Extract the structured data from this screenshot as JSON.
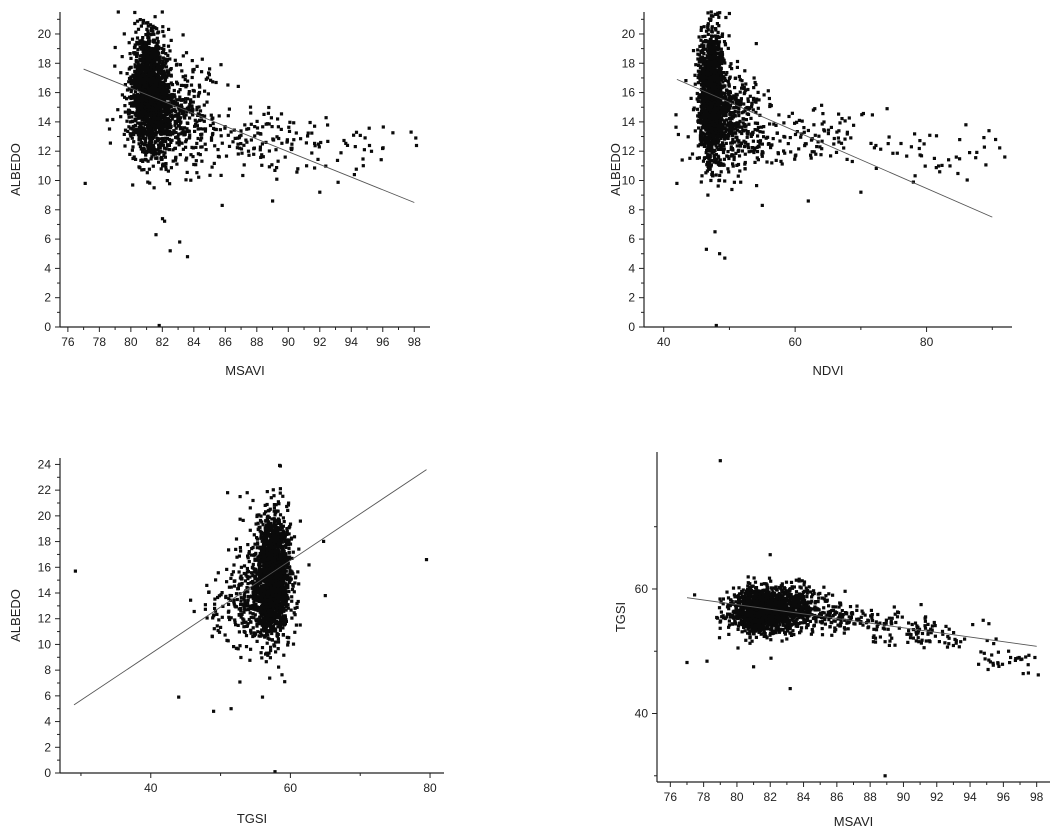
{
  "chart_data": [
    {
      "id": "p1",
      "type": "scatter",
      "xlabel": "MSAVI",
      "ylabel": "ALBEDO",
      "xlim": [
        75.5,
        99
      ],
      "ylim": [
        0,
        21.5
      ],
      "xticks": [
        76,
        78,
        80,
        82,
        84,
        86,
        88,
        90,
        92,
        94,
        96,
        98
      ],
      "yticks": [
        0,
        2,
        4,
        6,
        8,
        10,
        12,
        14,
        16,
        18,
        20
      ],
      "fit_line": [
        [
          77,
          17.6
        ],
        [
          98,
          8.5
        ]
      ],
      "clusters": [
        {
          "cx": 81.2,
          "cy": 16.0,
          "sx": 0.55,
          "sy": 2.1,
          "n": 1500
        },
        {
          "cx": 82.5,
          "cy": 14.6,
          "sx": 1.3,
          "sy": 1.8,
          "n": 550
        },
        {
          "cx": 87.5,
          "cy": 12.9,
          "sx": 2.2,
          "sy": 1.0,
          "n": 120
        },
        {
          "cx": 93.5,
          "cy": 12.0,
          "sx": 2.6,
          "sy": 1.1,
          "n": 50
        }
      ],
      "outliers": [
        [
          77.1,
          9.8
        ],
        [
          79.2,
          21.5
        ],
        [
          82.0,
          21.5
        ],
        [
          81.6,
          6.3
        ],
        [
          83.1,
          5.8
        ],
        [
          82.5,
          5.2
        ],
        [
          83.6,
          4.8
        ],
        [
          85.8,
          8.3
        ],
        [
          89.0,
          8.6
        ],
        [
          92.0,
          9.2
        ],
        [
          81.8,
          0.1
        ],
        [
          94.2,
          10.4
        ],
        [
          98.1,
          12.9
        ],
        [
          97.8,
          13.3
        ]
      ]
    },
    {
      "id": "p2",
      "type": "scatter",
      "xlabel": "NDVI",
      "ylabel": "ALBEDO",
      "xlim": [
        37,
        93
      ],
      "ylim": [
        0,
        21.5
      ],
      "xticks": [
        40,
        60,
        80
      ],
      "yticks": [
        0,
        2,
        4,
        6,
        8,
        10,
        12,
        14,
        16,
        18,
        20
      ],
      "fit_line": [
        [
          42,
          16.9
        ],
        [
          90,
          7.5
        ]
      ],
      "clusters": [
        {
          "cx": 47.3,
          "cy": 15.8,
          "sx": 0.9,
          "sy": 2.2,
          "n": 1500
        },
        {
          "cx": 50.0,
          "cy": 14.3,
          "sx": 2.6,
          "sy": 1.8,
          "n": 500
        },
        {
          "cx": 60.5,
          "cy": 12.9,
          "sx": 5.0,
          "sy": 1.1,
          "n": 120
        },
        {
          "cx": 80.0,
          "cy": 11.8,
          "sx": 5.5,
          "sy": 0.9,
          "n": 45
        }
      ],
      "outliers": [
        [
          42.0,
          9.8
        ],
        [
          46.5,
          5.3
        ],
        [
          48.5,
          5.0
        ],
        [
          49.3,
          4.7
        ],
        [
          47.8,
          6.5
        ],
        [
          55.0,
          8.3
        ],
        [
          62.0,
          8.6
        ],
        [
          70.0,
          9.2
        ],
        [
          74.0,
          14.9
        ],
        [
          89.5,
          13.4
        ],
        [
          90.5,
          12.8
        ],
        [
          48.0,
          0.1
        ],
        [
          50.0,
          21.4
        ]
      ]
    },
    {
      "id": "p3",
      "type": "scatter",
      "xlabel": "TGSI",
      "ylabel": "ALBEDO",
      "xlim": [
        27,
        82
      ],
      "ylim": [
        0,
        24.5
      ],
      "xticks": [
        40,
        60,
        80
      ],
      "yticks": [
        0,
        2,
        4,
        6,
        8,
        10,
        12,
        14,
        16,
        18,
        20,
        22,
        24
      ],
      "fit_line": [
        [
          29,
          5.3
        ],
        [
          79.5,
          23.6
        ]
      ],
      "clusters": [
        {
          "cx": 57.5,
          "cy": 15.6,
          "sx": 1.2,
          "sy": 2.3,
          "n": 1600
        },
        {
          "cx": 55.5,
          "cy": 13.8,
          "sx": 2.4,
          "sy": 2.0,
          "n": 450
        },
        {
          "cx": 50.5,
          "cy": 12.5,
          "sx": 2.2,
          "sy": 1.6,
          "n": 60
        }
      ],
      "outliers": [
        [
          29.2,
          15.7
        ],
        [
          79.5,
          16.6
        ],
        [
          44.0,
          5.9
        ],
        [
          49.0,
          4.8
        ],
        [
          51.5,
          5.0
        ],
        [
          56.0,
          5.9
        ],
        [
          65.0,
          13.8
        ],
        [
          51.0,
          21.8
        ],
        [
          52.8,
          21.5
        ],
        [
          57.8,
          0.1
        ]
      ]
    },
    {
      "id": "p4",
      "type": "scatter",
      "xlabel": "MSAVI",
      "ylabel": "TGSI",
      "xlim": [
        75.2,
        98.8
      ],
      "ylim": [
        29,
        82
      ],
      "xticks": [
        76,
        78,
        80,
        82,
        84,
        86,
        88,
        90,
        92,
        94,
        96,
        98
      ],
      "yticks": [
        40,
        60
      ],
      "fit_line": [
        [
          77,
          58.6
        ],
        [
          98,
          50.8
        ]
      ],
      "clusters": [
        {
          "cx": 81.5,
          "cy": 56.5,
          "sx": 0.9,
          "sy": 1.7,
          "n": 1200
        },
        {
          "cx": 83.0,
          "cy": 57.0,
          "sx": 1.3,
          "sy": 1.8,
          "n": 500
        },
        {
          "cx": 86.5,
          "cy": 55.2,
          "sx": 1.6,
          "sy": 1.2,
          "n": 150
        },
        {
          "cx": 91.5,
          "cy": 52.6,
          "sx": 2.0,
          "sy": 1.1,
          "n": 80
        },
        {
          "cx": 96.0,
          "cy": 48.5,
          "sx": 1.2,
          "sy": 1.0,
          "n": 30
        }
      ],
      "outliers": [
        [
          79.0,
          80.6
        ],
        [
          82.0,
          65.5
        ],
        [
          83.2,
          44.0
        ],
        [
          77.0,
          48.2
        ],
        [
          78.2,
          48.4
        ],
        [
          81.0,
          47.5
        ],
        [
          88.9,
          30.0
        ],
        [
          97.5,
          46.5
        ],
        [
          98.1,
          46.2
        ]
      ]
    }
  ]
}
